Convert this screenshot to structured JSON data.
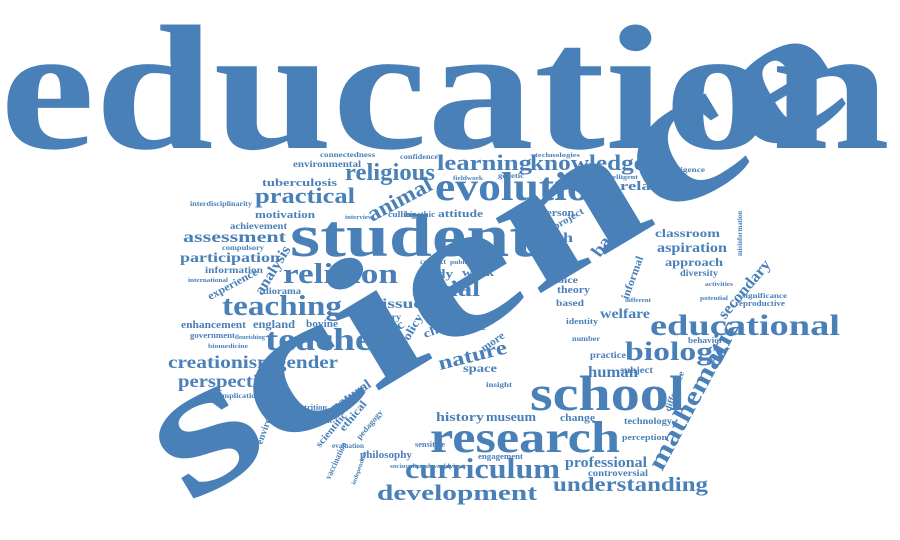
{
  "color": "#4a80b8",
  "words": {
    "education": "education",
    "science": "science",
    "student": "student",
    "evolution": "evolution",
    "school": "school",
    "research": "research",
    "teacher": "teacher",
    "religion": "religion",
    "teaching": "teaching",
    "educational": "educational",
    "biology": "biology",
    "curriculum": "curriculum",
    "development": "development",
    "understanding": "understanding",
    "mathematic": "mathematic",
    "knowledge": "knowledge",
    "learning": "learning",
    "religious": "religious",
    "animal": "animal",
    "practical": "practical",
    "social": "social",
    "nature": "nature",
    "creationism": "creationism",
    "gender": "gender",
    "perspective": "perspective",
    "human": "human",
    "professional": "professional",
    "secondary": "secondary",
    "badger": "badger",
    "relationship": "relationship",
    "assessment": "assessment",
    "participation": "participation",
    "analysis": "analysis",
    "history": "history",
    "museum": "museum",
    "aspiration": "aspiration",
    "classroom": "classroom",
    "approach": "approach",
    "health": "health",
    "welfare": "welfare",
    "motivation": "motivation",
    "achievement": "achievement",
    "tuberculosis": "tuberculosis",
    "environmental": "environmental",
    "connectedness": "connectedness",
    "confidence": "confidence",
    "technologies": "technologies",
    "attitude": "attitude",
    "bioethic": "bioethic",
    "culling": "culling",
    "person": "person",
    "project": "project",
    "informal": "informal",
    "diversity": "diversity",
    "experience": "experience",
    "information": "information",
    "international": "international",
    "compulsory": "compulsory",
    "issue": "issue",
    "ethic": "ethic",
    "study": "study",
    "work": "work",
    "impact": "impact",
    "primary": "primary",
    "diorama": "diorama",
    "bovine": "bovine",
    "physic": "physic",
    "policy": "policy",
    "child": "child",
    "place": "place",
    "view": "view",
    "theory": "theory",
    "choice": "choice",
    "based": "based",
    "identity": "identity",
    "number": "number",
    "practice": "practice",
    "subject": "subject",
    "behavior": "behavior",
    "reproductive": "reproductive",
    "significance": "significance",
    "england": "england",
    "enhancement": "enhancement",
    "government": "government",
    "flourishing": "flourishing",
    "biomedicine": "biomedicine",
    "implication": "implication",
    "environment": "environment",
    "nutrition": "nutrition",
    "important": "important",
    "natural": "natural",
    "scientific": "scientific",
    "ethical": "ethical",
    "pedagogy": "pedagogy",
    "evaluation": "evaluation",
    "vaccination": "vaccination",
    "independent": "independent",
    "sociocultural": "sociocultural",
    "worldviews": "worldviews",
    "philosophy": "philosophy",
    "sensitive": "sensitive",
    "engagement": "engagement",
    "change": "change",
    "technology": "technology",
    "perception": "perception",
    "controversial": "controversial",
    "difference": "difference",
    "space": "space",
    "insight": "insight",
    "more": "more",
    "intelligence": "intelligence",
    "intelligent": "intelligent",
    "genetic": "genetic",
    "fieldwork": "fieldwork",
    "interdisciplinarity": "interdisciplinarity",
    "interview": "interview",
    "misinformation": "misinformation",
    "different": "different",
    "potential": "potential",
    "activities": "activities",
    "context": "context",
    "public": "public"
  }
}
